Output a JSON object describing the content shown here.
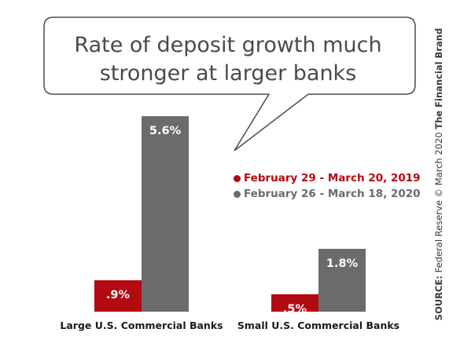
{
  "callout": {
    "line1": "Rate of deposit growth much",
    "line2": "stronger at larger banks"
  },
  "colors": {
    "series_2019": "#b30a12",
    "series_2020": "#6b6b6b",
    "bubble_stroke": "#4d4d4d",
    "text_dark": "#1a1a1a"
  },
  "chart_data": {
    "type": "bar",
    "categories": [
      "Large U.S. Commercial Banks",
      "Small U.S. Commercial Banks"
    ],
    "series": [
      {
        "name": "February 29 - March 20, 2019",
        "values": [
          0.9,
          0.5
        ],
        "labels": [
          ".9%",
          ".5%"
        ],
        "color": "#b30a12"
      },
      {
        "name": "February 26 - March 18, 2020",
        "values": [
          5.6,
          1.8
        ],
        "labels": [
          "5.6%",
          "1.8%"
        ],
        "color": "#6b6b6b"
      }
    ],
    "title": "Rate of deposit growth much stronger at larger banks",
    "unit": "%",
    "ylim": [
      0,
      5.6
    ],
    "grid": false,
    "axes_visible": false,
    "legend_position": "right"
  },
  "source": {
    "label": "SOURCE:",
    "text": "Federal Reserve © March 2020",
    "brand": "The Financial Brand"
  }
}
